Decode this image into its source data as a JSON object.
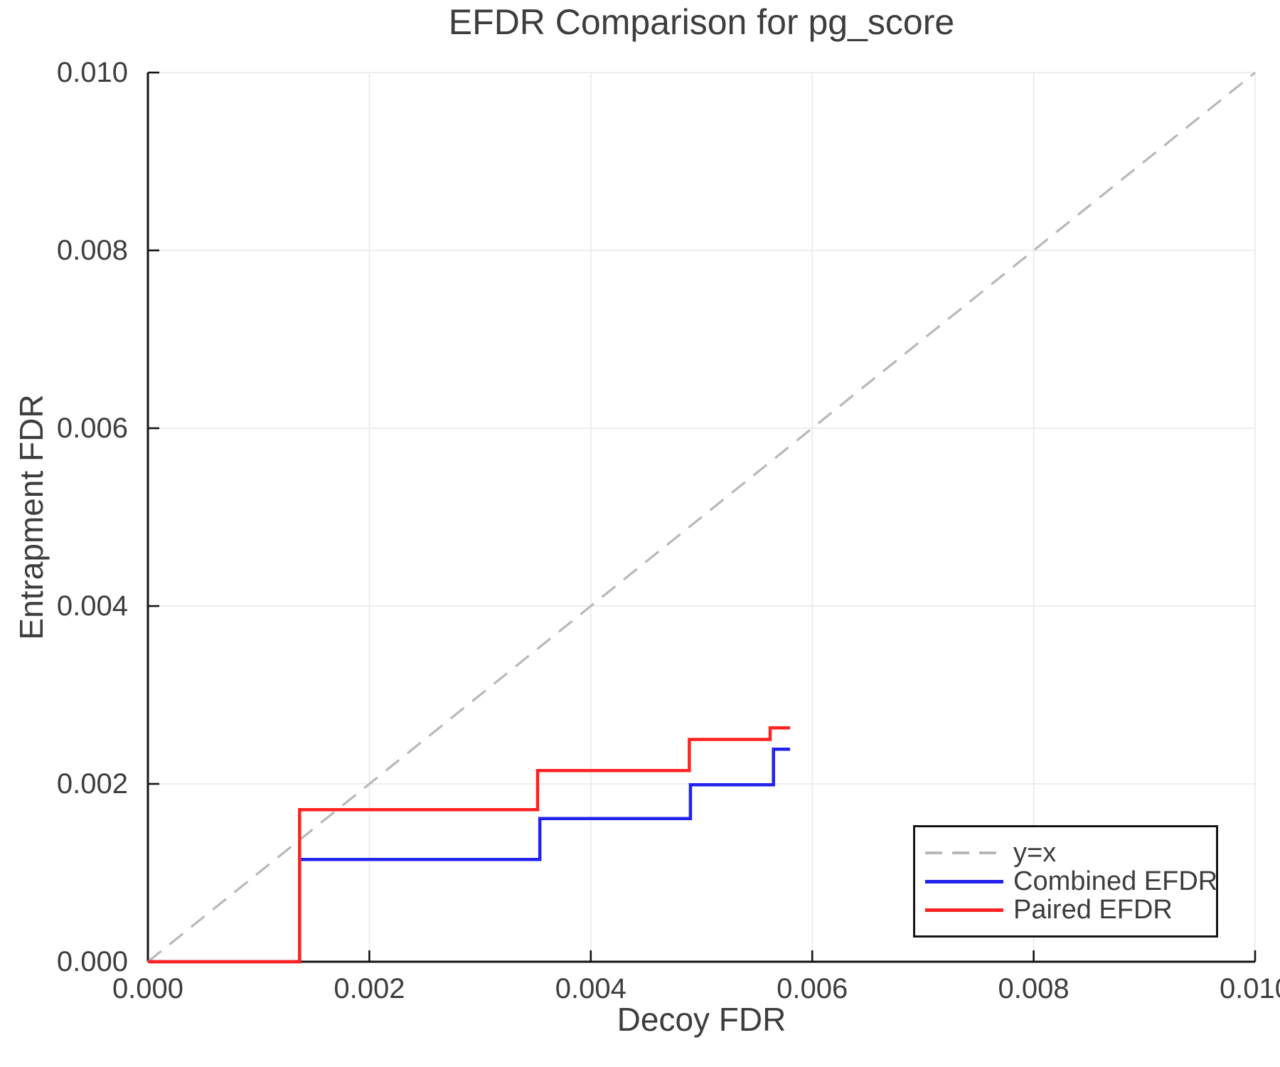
{
  "title": "EFDR Comparison for pg_score",
  "colors": {
    "background": "#ffffff",
    "text": "#3d3d3d",
    "axis": "#151515",
    "grid": "#e8e8e8",
    "identity_line": "#b8b8b8",
    "combined_line": "#2222ee",
    "paired_line": "#ff2222"
  },
  "chart_data": {
    "type": "line",
    "title": "EFDR Comparison for pg_score",
    "xlabel": "Decoy FDR",
    "ylabel": "Entrapment FDR",
    "xlim": [
      0.0,
      0.01
    ],
    "ylim": [
      0.0,
      0.01
    ],
    "grid": true,
    "legend_position": "bottom-right",
    "xticks": {
      "values": [
        0.0,
        0.002,
        0.004,
        0.006,
        0.008,
        0.01
      ],
      "labels": [
        "0.000",
        "0.002",
        "0.004",
        "0.006",
        "0.008",
        "0.010"
      ]
    },
    "yticks": {
      "values": [
        0.0,
        0.002,
        0.004,
        0.006,
        0.008,
        0.01
      ],
      "labels": [
        "0.000",
        "0.002",
        "0.004",
        "0.006",
        "0.008",
        "0.010"
      ]
    },
    "series": [
      {
        "name": "y=x",
        "style": "dashed",
        "color": "#b8b8b8",
        "points": [
          [
            0.0,
            0.0
          ],
          [
            0.01,
            0.01
          ]
        ]
      },
      {
        "name": "Combined EFDR",
        "style": "solid",
        "color": "#2222ee",
        "points": [
          [
            0.0,
            0.0
          ],
          [
            0.00137,
            0.0
          ],
          [
            0.00137,
            0.00115
          ],
          [
            0.00354,
            0.00115
          ],
          [
            0.00354,
            0.00161
          ],
          [
            0.0049,
            0.00161
          ],
          [
            0.0049,
            0.00199
          ],
          [
            0.00565,
            0.00199
          ],
          [
            0.00565,
            0.00239
          ],
          [
            0.0058,
            0.00239
          ]
        ]
      },
      {
        "name": "Paired EFDR",
        "style": "solid",
        "color": "#ff2222",
        "points": [
          [
            0.0,
            0.0
          ],
          [
            0.00137,
            0.0
          ],
          [
            0.00137,
            0.00171
          ],
          [
            0.00352,
            0.00171
          ],
          [
            0.00352,
            0.00215
          ],
          [
            0.00489,
            0.00215
          ],
          [
            0.00489,
            0.0025
          ],
          [
            0.00562,
            0.0025
          ],
          [
            0.00562,
            0.00263
          ],
          [
            0.0058,
            0.00263
          ]
        ]
      }
    ]
  }
}
